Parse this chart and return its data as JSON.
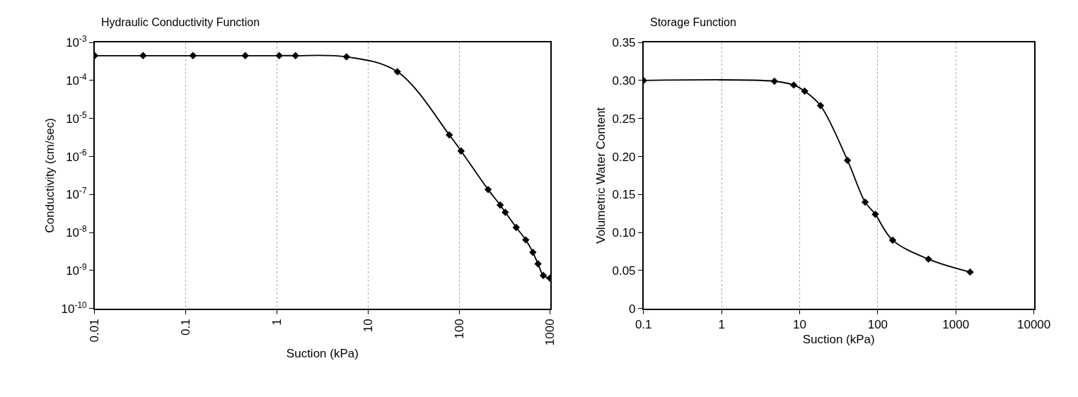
{
  "chart_data": [
    {
      "type": "line",
      "title": "Hydraulic Conductivity Function",
      "xlabel": "Suction (kPa)",
      "ylabel": "Conductivity (cm/sec)",
      "log": "xy",
      "grid": "x",
      "marker": "diamond",
      "line_style": "solid",
      "x": [
        0.01,
        0.034,
        0.12,
        0.45,
        1.06,
        1.6,
        5.8,
        21,
        78,
        105,
        208,
        282,
        321,
        423,
        538,
        644,
        734,
        838,
        990
      ],
      "series": [
        {
          "color": "#000000",
          "values": [
            0.00045,
            0.00045,
            0.00045,
            0.00045,
            0.00045,
            0.00045,
            0.00042,
            0.00017,
            3.7e-06,
            1.4e-06,
            1.35e-07,
            5.3e-08,
            3.4e-08,
            1.36e-08,
            6.4e-09,
            3e-09,
            1.5e-09,
            7.4e-10,
            6.3e-10
          ]
        }
      ],
      "xlim": [
        0.01,
        1000
      ],
      "xticks": [
        0.01,
        0.1,
        1,
        10,
        100,
        1000
      ],
      "ylim": [
        1e-10,
        0.001
      ],
      "yticks": [
        {
          "value": 1e-10,
          "label": "10$^{-10}$"
        },
        {
          "value": 1e-09,
          "label": "10$^{-9}$"
        },
        {
          "value": 1e-08,
          "label": "10$^{-8}$"
        },
        {
          "value": 1e-07,
          "label": "10$^{-7}$"
        },
        {
          "value": 1e-06,
          "label": "10$^{-6}$"
        },
        {
          "value": 1e-05,
          "label": "10$^{-5}$"
        },
        {
          "value": 0.0001,
          "label": "10$^{-4}$"
        },
        {
          "value": 0.001,
          "label": "10$^{-3}$"
        }
      ]
    },
    {
      "type": "line",
      "title": "Storage Function",
      "xlabel": "Suction (kPa)",
      "ylabel": "Volumetric Water Content",
      "log": "x",
      "grid": "x",
      "marker": "diamond",
      "line_style": "solid",
      "x": [
        0.1,
        4.75,
        8.4,
        11.6,
        18.5,
        41,
        69,
        93,
        155,
        446,
        1525
      ],
      "series": [
        {
          "color": "#000000",
          "values": [
            0.3,
            0.299,
            0.294,
            0.286,
            0.267,
            0.195,
            0.14,
            0.124,
            0.09,
            0.065,
            0.048
          ]
        }
      ],
      "xlim": [
        0.1,
        10000
      ],
      "xticks": [
        0.1,
        1,
        10,
        100,
        1000,
        10000
      ],
      "ylim": [
        0,
        0.35
      ],
      "yticks": [
        0,
        {
          "value": 0.05,
          "label": "0.05"
        },
        {
          "value": 0.1,
          "label": "0.10"
        },
        {
          "value": 0.15,
          "label": "0.15"
        },
        {
          "value": 0.2,
          "label": "0.20"
        },
        {
          "value": 0.25,
          "label": "0.25"
        },
        {
          "value": 0.3,
          "label": "0.30"
        },
        {
          "value": 0.35,
          "label": "0.35"
        }
      ]
    }
  ]
}
